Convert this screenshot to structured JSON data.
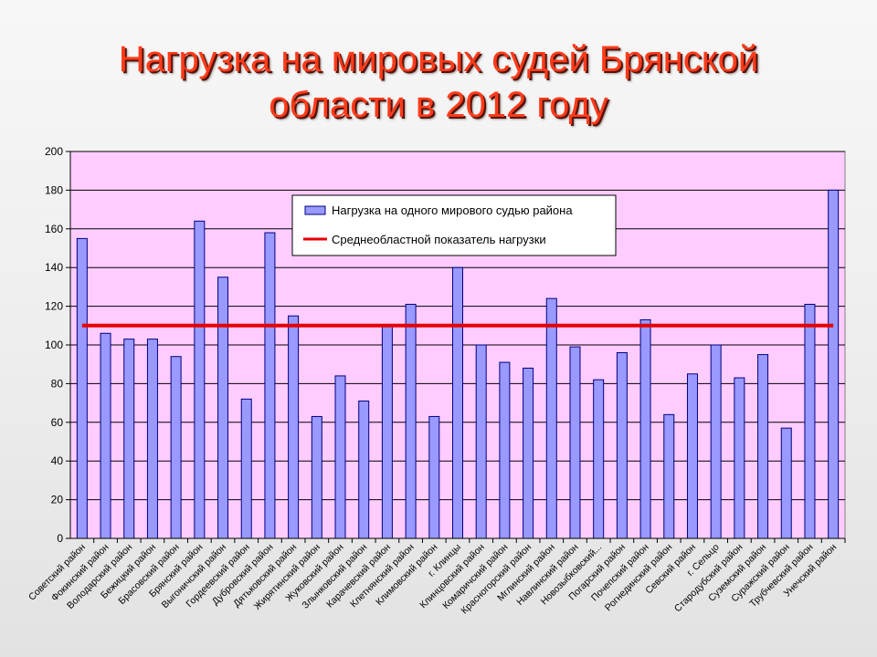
{
  "title": {
    "line1": "Нагрузка на мировых судей Брянской",
    "line2": "области в 2012 году"
  },
  "colors": {
    "title": "#ff3b1a",
    "plot_bg": "#ffccff",
    "bar": "#9999ff",
    "bar_border": "#000080",
    "avg_line": "#e60000"
  },
  "chart_data": {
    "type": "bar",
    "title": "",
    "xlabel": "",
    "ylabel": "",
    "ylim": [
      0,
      200
    ],
    "yticks": [
      0,
      20,
      40,
      60,
      80,
      100,
      120,
      140,
      160,
      180,
      200
    ],
    "grid": true,
    "legend_position": "top-center",
    "categories": [
      "Советский район",
      "Фокинский район",
      "Володарский район",
      "Бежицкий район",
      "Брасовский район",
      "Брянский район",
      "Выгоничский район",
      "Гордеевский район",
      "Дубровский район",
      "Дятьковский район",
      "Жирятинский район",
      "Жуковский район",
      "Злынковский район",
      "Карачевский район",
      "Клетнянский район",
      "Климовский район",
      "г. Клинцы",
      "Клинцовский район",
      "Комаричский район",
      "Красногорский район",
      "Мглинский район",
      "Навлинский район",
      "Новозыбковский...",
      "Погарский район",
      "Почепский район",
      "Рогнединский район",
      "Севский район",
      "г. Сельцо",
      "Стародубский район",
      "Суземский район",
      "Суражский район",
      "Трубчевский район",
      "Унечский район"
    ],
    "series": [
      {
        "name": "Нагрузка на одного мирового судью района",
        "kind": "bar",
        "values": [
          155,
          106,
          103,
          103,
          94,
          164,
          135,
          72,
          158,
          115,
          63,
          84,
          71,
          110,
          121,
          63,
          140,
          100,
          91,
          88,
          124,
          99,
          82,
          96,
          113,
          64,
          85,
          100,
          83,
          95,
          57,
          121,
          180
        ]
      },
      {
        "name": "Среднеобластной показатель нагрузки",
        "kind": "line",
        "value": 110
      }
    ]
  }
}
